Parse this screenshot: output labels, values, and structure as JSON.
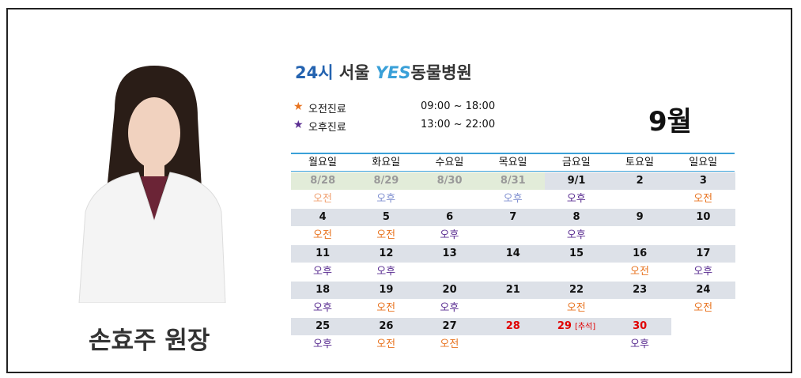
{
  "doctor": {
    "name": "손효주 원장"
  },
  "logo": {
    "prefix": "24시",
    "city": "서울",
    "brand": "YES",
    "suffix": "동물병원"
  },
  "legend": [
    {
      "symbol": "★",
      "label": "오전진료",
      "hours": "09:00 ~ 18:00",
      "color": "#e8731f"
    },
    {
      "symbol": "★",
      "label": "오후진료",
      "hours": "13:00 ~ 22:00",
      "color": "#5a2d91"
    }
  ],
  "month": "9월",
  "calendar": {
    "headers": [
      "월요일",
      "화요일",
      "수요일",
      "목요일",
      "금요일",
      "토요일",
      "일요일"
    ],
    "weeks": [
      [
        {
          "date": "8/28",
          "shift": "오전",
          "style": "past"
        },
        {
          "date": "8/29",
          "shift": "오후",
          "style": "past"
        },
        {
          "date": "8/30",
          "shift": null,
          "style": "past"
        },
        {
          "date": "8/31",
          "shift": "오후",
          "style": "past"
        },
        {
          "date": "9/1",
          "shift": "오후"
        },
        {
          "date": "2",
          "shift": null
        },
        {
          "date": "3",
          "shift": "오전"
        }
      ],
      [
        {
          "date": "4",
          "shift": "오전"
        },
        {
          "date": "5",
          "shift": "오전"
        },
        {
          "date": "6",
          "shift": "오후"
        },
        {
          "date": "7",
          "shift": null
        },
        {
          "date": "8",
          "shift": "오후"
        },
        {
          "date": "9",
          "shift": null
        },
        {
          "date": "10",
          "shift": null
        }
      ],
      [
        {
          "date": "11",
          "shift": "오후"
        },
        {
          "date": "12",
          "shift": "오후"
        },
        {
          "date": "13",
          "shift": null
        },
        {
          "date": "14",
          "shift": null
        },
        {
          "date": "15",
          "shift": null
        },
        {
          "date": "16",
          "shift": "오전"
        },
        {
          "date": "17",
          "shift": "오후"
        }
      ],
      [
        {
          "date": "18",
          "shift": "오후"
        },
        {
          "date": "19",
          "shift": "오전"
        },
        {
          "date": "20",
          "shift": "오후"
        },
        {
          "date": "21",
          "shift": null
        },
        {
          "date": "22",
          "shift": "오전"
        },
        {
          "date": "23",
          "shift": null
        },
        {
          "date": "24",
          "shift": "오전"
        }
      ],
      [
        {
          "date": "25",
          "shift": "오후"
        },
        {
          "date": "26",
          "shift": "오전"
        },
        {
          "date": "27",
          "shift": "오전"
        },
        {
          "date": "28",
          "shift": null,
          "style": "holiday"
        },
        {
          "date": "29",
          "note": "[추석]",
          "shift": null,
          "style": "holiday"
        },
        {
          "date": "30",
          "shift": "오후",
          "style": "holiday"
        }
      ]
    ]
  }
}
